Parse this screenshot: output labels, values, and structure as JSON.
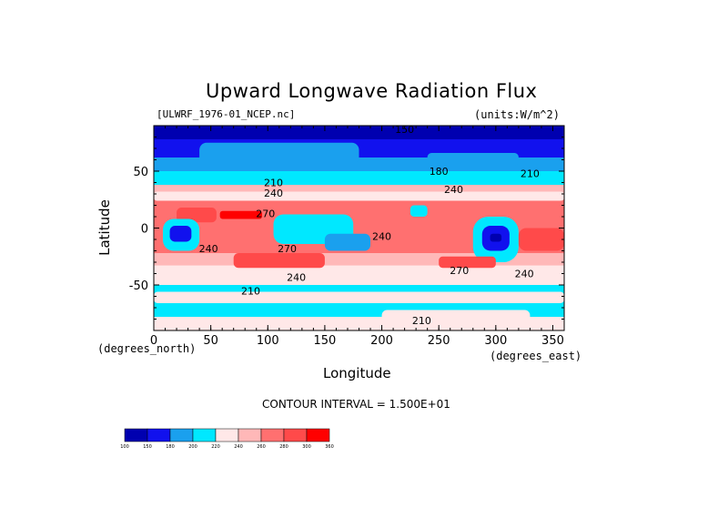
{
  "chart_data": {
    "type": "heatmap",
    "title": "Upward Longwave Radiation Flux",
    "dataset_label": "[ULWRF_1976-01_NCEP.nc]",
    "units_label": "(units:W/m^2)",
    "xlabel": "Longitude",
    "ylabel": "Latitude",
    "x_units": "(degrees_east)",
    "y_units": "(degrees_north)",
    "xlim": [
      0,
      360
    ],
    "ylim": [
      -90,
      90
    ],
    "x_ticks": [
      "0",
      "50",
      "100",
      "150",
      "200",
      "250",
      "300",
      "350"
    ],
    "y_ticks": [
      "50",
      "0",
      "-50"
    ],
    "contour_interval_text": "CONTOUR INTERVAL = 1.500E+01",
    "contour_labels": [
      {
        "text": "150",
        "lon": 220,
        "lat": 87
      },
      {
        "text": "180",
        "lon": 250,
        "lat": 50
      },
      {
        "text": "210",
        "lon": 330,
        "lat": 48
      },
      {
        "text": "210",
        "lon": 105,
        "lat": 40
      },
      {
        "text": "240",
        "lon": 105,
        "lat": 31
      },
      {
        "text": "240",
        "lon": 263,
        "lat": 34
      },
      {
        "text": "270",
        "lon": 98,
        "lat": 13
      },
      {
        "text": "240",
        "lon": 200,
        "lat": -7
      },
      {
        "text": "240",
        "lon": 48,
        "lat": -18
      },
      {
        "text": "270",
        "lon": 117,
        "lat": -18
      },
      {
        "text": "240",
        "lon": 125,
        "lat": -43
      },
      {
        "text": "270",
        "lon": 268,
        "lat": -37
      },
      {
        "text": "240",
        "lon": 325,
        "lat": -40
      },
      {
        "text": "210",
        "lon": 85,
        "lat": -55
      },
      {
        "text": "210",
        "lon": 235,
        "lat": -81
      }
    ],
    "colorbar": {
      "levels": [
        "100",
        "150",
        "180",
        "200",
        "220",
        "240",
        "260",
        "280",
        "300",
        "360"
      ],
      "colors": [
        "#0000b0",
        "#1111ee",
        "#1aa0ee",
        "#00e8ff",
        "#ffe8e8",
        "#ffb8b8",
        "#ff7070",
        "#ff4a4a",
        "#ff0000"
      ]
    },
    "bands": [
      {
        "lat_min": 78,
        "lat_max": 90,
        "level": 0
      },
      {
        "lat_min": 62,
        "lat_max": 78,
        "level": 1
      },
      {
        "lat_min": 50,
        "lat_max": 62,
        "level": 2
      },
      {
        "lat_min": 38,
        "lat_max": 50,
        "level": 3
      },
      {
        "lat_min": 28,
        "lat_max": 38,
        "level": 5
      },
      {
        "lat_min": 20,
        "lat_max": 28,
        "level": 6
      },
      {
        "lat_min": -22,
        "lat_max": 20,
        "level": 6
      },
      {
        "lat_min": -33,
        "lat_max": -22,
        "level": 5
      },
      {
        "lat_min": -50,
        "lat_max": -33,
        "level": 4
      },
      {
        "lat_min": -68,
        "lat_max": -50,
        "level": 3
      },
      {
        "lat_min": -78,
        "lat_max": -68,
        "level": 3
      },
      {
        "lat_min": -90,
        "lat_max": -78,
        "level": 4
      }
    ],
    "patches": [
      {
        "lon_min": 0,
        "lon_max": 360,
        "lat_min": 82,
        "lat_max": 90,
        "level": 0
      },
      {
        "lon_min": 40,
        "lon_max": 180,
        "lat_min": 56,
        "lat_max": 75,
        "level": 2
      },
      {
        "lon_min": 240,
        "lon_max": 320,
        "lat_min": 55,
        "lat_max": 66,
        "level": 2
      },
      {
        "lon_min": 60,
        "lon_max": 130,
        "lat_min": 38,
        "lat_max": 46,
        "level": 3
      },
      {
        "lon_min": 0,
        "lon_max": 360,
        "lat_min": 24,
        "lat_max": 32,
        "level": 4
      },
      {
        "lon_min": 20,
        "lon_max": 55,
        "lat_min": 5,
        "lat_max": 18,
        "level": 7
      },
      {
        "lon_min": 58,
        "lon_max": 95,
        "lat_min": 8,
        "lat_max": 15,
        "level": 8
      },
      {
        "lon_min": 8,
        "lon_max": 40,
        "lat_min": -20,
        "lat_max": 8,
        "level": 3
      },
      {
        "lon_min": 14,
        "lon_max": 33,
        "lat_min": -12,
        "lat_max": 2,
        "level": 1
      },
      {
        "lon_min": 105,
        "lon_max": 175,
        "lat_min": -14,
        "lat_max": 12,
        "level": 3
      },
      {
        "lon_min": 150,
        "lon_max": 190,
        "lat_min": -20,
        "lat_max": -5,
        "level": 2
      },
      {
        "lon_min": 225,
        "lon_max": 240,
        "lat_min": 10,
        "lat_max": 20,
        "level": 3
      },
      {
        "lon_min": 280,
        "lon_max": 320,
        "lat_min": -30,
        "lat_max": 10,
        "level": 3
      },
      {
        "lon_min": 288,
        "lon_max": 312,
        "lat_min": -20,
        "lat_max": 2,
        "level": 1
      },
      {
        "lon_min": 295,
        "lon_max": 305,
        "lat_min": -12,
        "lat_max": -5,
        "level": 0
      },
      {
        "lon_min": 70,
        "lon_max": 150,
        "lat_min": -35,
        "lat_max": -22,
        "level": 7
      },
      {
        "lon_min": 250,
        "lon_max": 300,
        "lat_min": -35,
        "lat_max": -25,
        "level": 7
      },
      {
        "lon_min": 320,
        "lon_max": 360,
        "lat_min": -20,
        "lat_max": 0,
        "level": 7
      },
      {
        "lon_min": 0,
        "lon_max": 360,
        "lat_min": -66,
        "lat_max": -56,
        "level": 4
      },
      {
        "lon_min": 200,
        "lon_max": 330,
        "lat_min": -86,
        "lat_max": -72,
        "level": 4
      }
    ]
  }
}
